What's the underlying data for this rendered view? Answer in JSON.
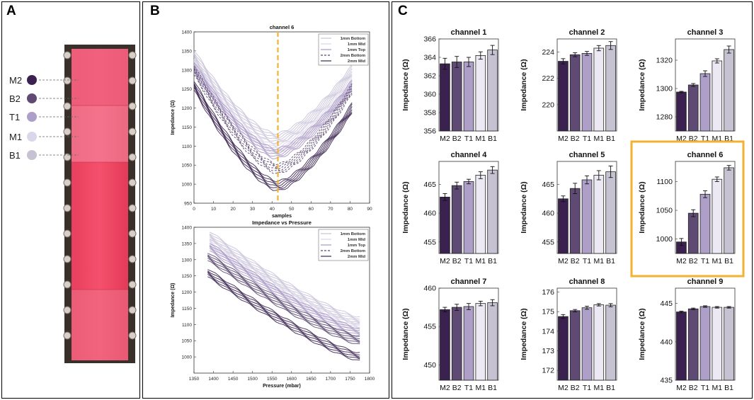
{
  "figure": {
    "panel_a_label": "A",
    "panel_b_label": "B",
    "panel_c_label": "C"
  },
  "panel_a": {
    "legend": [
      {
        "label": "M2",
        "color": "#3b2150"
      },
      {
        "label": "B2",
        "color": "#5e4a72"
      },
      {
        "label": "T1",
        "color": "#ad9fc8"
      },
      {
        "label": "M1",
        "color": "#dcd6ea"
      },
      {
        "label": "B1",
        "color": "#c6c2d2"
      }
    ]
  },
  "chart_data": [
    {
      "type": "line",
      "title": "channel 6",
      "xlabel": "samples",
      "ylabel": "Impedance (Ω)",
      "xlim": [
        0,
        90
      ],
      "ylim": [
        950,
        1400
      ],
      "xticks": [
        0,
        10,
        20,
        30,
        40,
        50,
        60,
        70,
        80,
        90
      ],
      "yticks": [
        950,
        1000,
        1050,
        1100,
        1150,
        1200,
        1250,
        1300,
        1350,
        1400
      ],
      "marker_x": 43,
      "marker_color": "#f2b233",
      "legend": [
        "1mm Bottom",
        "1mm Mid",
        "1mm Top",
        "2mm Bottom",
        "2mm Mid"
      ],
      "series": [
        {
          "name": "1mm Bottom",
          "color": "#c9c3d9",
          "start": 1340,
          "min": 1120,
          "end": 1300,
          "min_x": 42
        },
        {
          "name": "1mm Mid",
          "color": "#d9d4e6",
          "start": 1320,
          "min": 1095,
          "end": 1270,
          "min_x": 42
        },
        {
          "name": "1mm Top",
          "color": "#a898c4",
          "start": 1310,
          "min": 1080,
          "end": 1260,
          "min_x": 42
        },
        {
          "name": "2mm Bottom",
          "color": "#5a4870",
          "start": 1300,
          "min": 1040,
          "end": 1250,
          "min_x": 43
        },
        {
          "name": "2mm Mid",
          "color": "#3a2450",
          "start": 1260,
          "min": 995,
          "end": 1200,
          "min_x": 43
        }
      ]
    },
    {
      "type": "line",
      "title": "Impedance vs Pressure",
      "xlabel": "Pressure (mbar)",
      "ylabel": "Impedance (Ω)",
      "xlim": [
        1350,
        1800
      ],
      "ylim": [
        950,
        1400
      ],
      "xticks": [
        1350,
        1400,
        1450,
        1500,
        1550,
        1600,
        1650,
        1700,
        1750,
        1800
      ],
      "yticks": [
        1000,
        1050,
        1100,
        1150,
        1200,
        1250,
        1300,
        1350,
        1400
      ],
      "legend": [
        "1mm Bottom",
        "1mm Mid",
        "1mm Top",
        "2mm Bottom",
        "2mm Mid"
      ],
      "series": [
        {
          "name": "1mm Bottom",
          "color": "#c9c3d9",
          "x_start": 1390,
          "y_start": 1375,
          "x_end": 1775,
          "y_end": 1110
        },
        {
          "name": "1mm Mid",
          "color": "#d9d4e6",
          "x_start": 1390,
          "y_start": 1355,
          "x_end": 1775,
          "y_end": 1090
        },
        {
          "name": "1mm Top",
          "color": "#a898c4",
          "x_start": 1390,
          "y_start": 1340,
          "x_end": 1775,
          "y_end": 1075
        },
        {
          "name": "2mm Bottom",
          "color": "#5a4870",
          "x_start": 1385,
          "y_start": 1310,
          "x_end": 1775,
          "y_end": 1050
        },
        {
          "name": "2mm Mid",
          "color": "#3a2450",
          "x_start": 1385,
          "y_start": 1260,
          "x_end": 1775,
          "y_end": 1000
        }
      ]
    },
    {
      "type": "bar_grid",
      "ylabel": "Impedance (Ω)",
      "categories": [
        "M2",
        "B2",
        "T1",
        "M1",
        "B1"
      ],
      "colors": [
        "#3b2150",
        "#5e4a72",
        "#ad9fc8",
        "#ece8f4",
        "#c6c2d2"
      ],
      "highlight_color": "#f2b233",
      "charts": [
        {
          "title": "channel 1",
          "ylim": [
            356,
            366
          ],
          "yticks": [
            356,
            358,
            360,
            362,
            364,
            366
          ],
          "values": [
            363.3,
            363.5,
            363.5,
            364.2,
            364.8
          ],
          "errors": [
            0.6,
            0.6,
            0.5,
            0.4,
            0.5
          ],
          "highlight": false
        },
        {
          "title": "channel 2",
          "ylim": [
            218,
            225
          ],
          "yticks": [
            220,
            222,
            224
          ],
          "values": [
            223.3,
            223.8,
            223.9,
            224.3,
            224.5
          ],
          "errors": [
            0.2,
            0.15,
            0.15,
            0.2,
            0.3
          ],
          "highlight": false
        },
        {
          "title": "channel 3",
          "ylim": [
            1270,
            1335
          ],
          "yticks": [
            1280,
            1300,
            1320
          ],
          "values": [
            1297.5,
            1302.5,
            1310.5,
            1319.5,
            1327.5
          ],
          "errors": [
            0.5,
            1,
            2,
            1.5,
            2.5
          ],
          "highlight": false
        },
        {
          "title": "channel 4",
          "ylim": [
            453,
            469
          ],
          "yticks": [
            455,
            460,
            465
          ],
          "values": [
            462.8,
            464.8,
            465.5,
            466.6,
            467.5
          ],
          "errors": [
            0.6,
            0.6,
            0.4,
            0.6,
            0.6
          ],
          "highlight": false
        },
        {
          "title": "channel 5",
          "ylim": [
            453,
            469
          ],
          "yticks": [
            455,
            460,
            465
          ],
          "values": [
            462.5,
            464.3,
            465.8,
            466.6,
            467.2
          ],
          "errors": [
            0.5,
            0.9,
            0.7,
            0.8,
            1.0
          ],
          "highlight": false
        },
        {
          "title": "channel 6",
          "ylim": [
            975,
            1135
          ],
          "yticks": [
            1000,
            1050,
            1100
          ],
          "values": [
            995,
            1045,
            1078,
            1104,
            1124
          ],
          "errors": [
            6,
            6,
            6,
            4,
            4
          ],
          "highlight": true
        },
        {
          "title": "channel 7",
          "ylim": [
            448,
            460
          ],
          "yticks": [
            450,
            455,
            460
          ],
          "values": [
            457.2,
            457.5,
            457.6,
            458.0,
            458.1
          ],
          "errors": [
            0.3,
            0.4,
            0.4,
            0.3,
            0.4
          ],
          "highlight": false
        },
        {
          "title": "channel 8",
          "ylim": [
            171.5,
            176.2
          ],
          "yticks": [
            172,
            173,
            174,
            175,
            176
          ],
          "values": [
            174.75,
            175.05,
            175.2,
            175.35,
            175.33
          ],
          "errors": [
            0.1,
            0.06,
            0.08,
            0.06,
            0.08
          ],
          "highlight": false
        },
        {
          "title": "channel 9",
          "ylim": [
            435,
            447
          ],
          "yticks": [
            435,
            440,
            445
          ],
          "values": [
            443.9,
            444.3,
            444.6,
            444.5,
            444.5
          ],
          "errors": [
            0.1,
            0.1,
            0.1,
            0.1,
            0.1
          ],
          "highlight": false
        }
      ]
    }
  ]
}
